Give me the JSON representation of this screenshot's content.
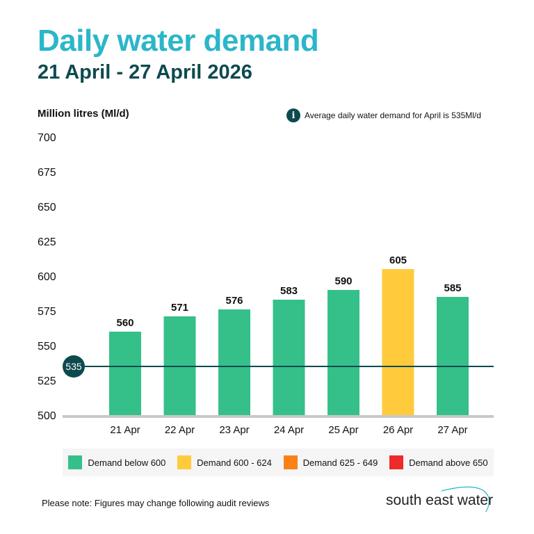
{
  "header": {
    "title": "Daily water demand",
    "subtitle": "21 April - 27 April 2026"
  },
  "note": {
    "icon": "info-icon",
    "text": "Average daily water demand for April is 535Ml/d"
  },
  "chart_data": {
    "type": "bar",
    "ylabel": "Million litres (Ml/d)",
    "ylim": [
      500,
      700
    ],
    "yticks": [
      500,
      525,
      550,
      575,
      600,
      625,
      650,
      675,
      700
    ],
    "categories": [
      "21 Apr",
      "22 Apr",
      "23 Apr",
      "24 Apr",
      "25 Apr",
      "26 Apr",
      "27 Apr"
    ],
    "values": [
      560,
      571,
      576,
      583,
      590,
      605,
      585
    ],
    "reference_line": {
      "value": 535,
      "label": "535",
      "color": "#0d4a4f"
    },
    "grid": false,
    "legend": [
      {
        "label": "Demand below 600",
        "color": "#35c08a"
      },
      {
        "label": "Demand 600 - 624",
        "color": "#ffcb3d"
      },
      {
        "label": "Demand 625 - 649",
        "color": "#fb8117"
      },
      {
        "label": "Demand above 650",
        "color": "#ee2a2a"
      }
    ],
    "legend_placement": "bottom"
  },
  "footer": {
    "note": "Please note: Figures may change following audit reviews",
    "logo": "south east water"
  }
}
